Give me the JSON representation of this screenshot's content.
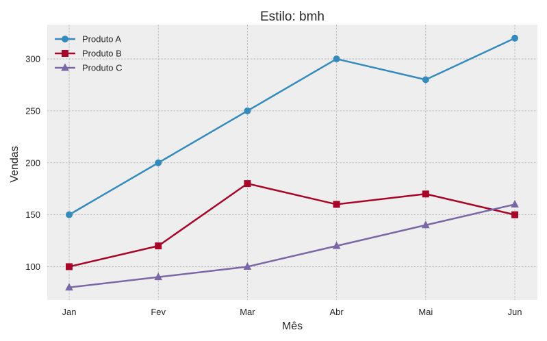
{
  "chart_data": {
    "type": "line",
    "title": "Estilo: bmh",
    "xlabel": "Mês",
    "ylabel": "Vendas",
    "categories": [
      "Jan",
      "Fev",
      "Mar",
      "Abr",
      "Mai",
      "Jun"
    ],
    "ylim": [
      68,
      333
    ],
    "yticks": [
      100,
      150,
      200,
      250,
      300
    ],
    "grid": true,
    "legend_position": "top-left",
    "background_color": "#eeeeee",
    "series": [
      {
        "name": "Produto A",
        "values": [
          150,
          200,
          250,
          300,
          280,
          320
        ],
        "color": "#348abd",
        "marker": "circle"
      },
      {
        "name": "Produto B",
        "values": [
          100,
          120,
          180,
          160,
          170,
          150
        ],
        "color": "#a60628",
        "marker": "square"
      },
      {
        "name": "Produto C",
        "values": [
          80,
          90,
          100,
          120,
          140,
          160
        ],
        "color": "#7a68a6",
        "marker": "triangle"
      }
    ]
  }
}
